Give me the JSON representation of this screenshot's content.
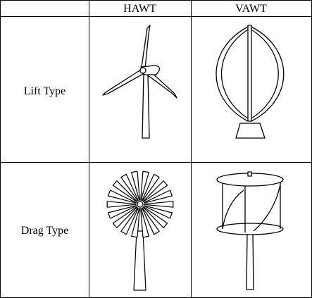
{
  "table": {
    "columns": [
      "HAWT",
      "VAWT"
    ],
    "rows": [
      "Lift Type",
      "Drag Type"
    ]
  },
  "icons": {
    "lift_hawt": "three-blade-horizontal-axis-turbine-icon",
    "lift_vawt": "darrieus-eggbeater-turbine-icon",
    "drag_hawt": "multi-blade-windmill-icon",
    "drag_vawt": "savonius-rotor-turbine-icon"
  },
  "colors": {
    "line": "#000000",
    "background": "#ffffff"
  }
}
